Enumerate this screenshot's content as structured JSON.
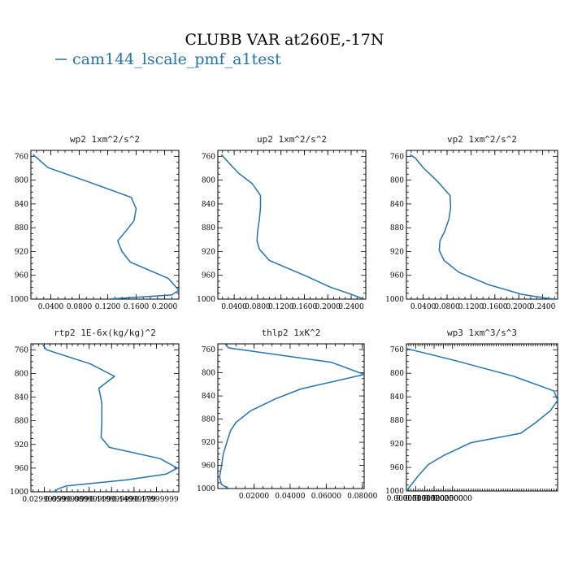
{
  "figure": {
    "title": "CLUBB VAR at260E,-17N",
    "legend": "cam144_lscale_pmf_a1test",
    "line_color": "#2673a8"
  },
  "chart_data": [
    {
      "type": "line",
      "title": "wp2  1xm^2/s^2",
      "ylim": [
        1000,
        750
      ],
      "xlim": [
        0.012,
        0.22
      ],
      "yticks": [
        760,
        800,
        840,
        880,
        920,
        960,
        1000
      ],
      "xticks": [
        0.04,
        0.08,
        0.12,
        0.16,
        0.2
      ],
      "xtick_labels": [
        "0.0400",
        "0.0800",
        "0.1200",
        "0.1600",
        "0.2000"
      ],
      "series": [
        {
          "x": [
            0.015,
            0.036,
            0.098,
            0.153,
            0.16,
            0.157,
            0.146,
            0.134,
            0.14,
            0.152,
            0.205,
            0.22,
            0.21,
            0.12
          ],
          "y": [
            757,
            779,
            805,
            829,
            848,
            868,
            885,
            902,
            920,
            938,
            965,
            985,
            993,
            1000
          ]
        }
      ]
    },
    {
      "type": "line",
      "title": "up2  1xm^2/s^2",
      "ylim": [
        1000,
        750
      ],
      "xlim": [
        0.012,
        0.265
      ],
      "yticks": [
        760,
        800,
        840,
        880,
        920,
        960,
        1000
      ],
      "xticks": [
        0.04,
        0.08,
        0.12,
        0.16,
        0.2,
        0.24
      ],
      "xtick_labels": [
        "0.0400",
        "0.0800",
        "0.1200",
        "0.1600",
        "0.2000",
        "0.2400"
      ],
      "series": [
        {
          "x": [
            0.018,
            0.03,
            0.047,
            0.071,
            0.085,
            0.085,
            0.083,
            0.08,
            0.079,
            0.083,
            0.1,
            0.16,
            0.205,
            0.24,
            0.262
          ],
          "y": [
            757,
            770,
            788,
            806,
            826,
            846,
            866,
            886,
            902,
            916,
            935,
            960,
            980,
            992,
            1000
          ]
        }
      ]
    },
    {
      "type": "line",
      "title": "vp2  1xm^2/s^2",
      "ylim": [
        1000,
        750
      ],
      "xlim": [
        0.012,
        0.265
      ],
      "yticks": [
        760,
        800,
        840,
        880,
        920,
        960,
        1000
      ],
      "xticks": [
        0.04,
        0.08,
        0.12,
        0.16,
        0.2,
        0.24
      ],
      "xtick_labels": [
        "0.0400",
        "0.0800",
        "0.1200",
        "0.1600",
        "0.2000",
        "0.2400"
      ],
      "series": [
        {
          "x": [
            0.018,
            0.027,
            0.041,
            0.064,
            0.085,
            0.086,
            0.083,
            0.076,
            0.068,
            0.067,
            0.075,
            0.1,
            0.15,
            0.205,
            0.25,
            0.263
          ],
          "y": [
            757,
            763,
            780,
            802,
            826,
            846,
            866,
            886,
            902,
            918,
            935,
            955,
            976,
            992,
            999,
            1000
          ]
        }
      ]
    },
    {
      "type": "line",
      "title": "rtp2  1E-6x(kg/kg)^2",
      "ylim": [
        1000,
        750
      ],
      "xlim": [
        0.012,
        0.21
      ],
      "yticks": [
        760,
        800,
        840,
        880,
        920,
        960,
        1000
      ],
      "xticks": [
        0.03,
        0.06,
        0.09,
        0.12,
        0.15,
        0.18
      ],
      "xtick_labels": [
        "0.02999999",
        "0.05999999",
        "0.08999999",
        "0.11999999",
        "0.14999999",
        "0.17999999"
      ],
      "series": [
        {
          "x": [
            0.028,
            0.033,
            0.092,
            0.124,
            0.103,
            0.107,
            0.107,
            0.106,
            0.117,
            0.185,
            0.208,
            0.193,
            0.14,
            0.06,
            0.048,
            0.045,
            0.04
          ],
          "y": [
            752,
            760,
            784,
            805,
            825,
            850,
            880,
            908,
            925,
            944,
            960,
            970,
            980,
            990,
            995,
            999,
            1000
          ]
        }
      ]
    },
    {
      "type": "line",
      "title": "thlp2  1xK^2",
      "ylim": [
        1000,
        750
      ],
      "xlim": [
        0.0,
        0.081
      ],
      "yticks": [
        760,
        800,
        840,
        880,
        920,
        960,
        1000
      ],
      "xticks": [
        0.02,
        0.04,
        0.06,
        0.08
      ],
      "xtick_labels": [
        "0.02000",
        "0.04000",
        "0.06000",
        "0.08000"
      ],
      "series": [
        {
          "x": [
            0.003,
            0.006,
            0.063,
            0.081,
            0.046,
            0.032,
            0.018,
            0.01,
            0.007,
            0.005,
            0.003,
            0.002,
            0.001,
            0.002,
            0.006
          ],
          "y": [
            747,
            757,
            782,
            803,
            828,
            845,
            866,
            886,
            900,
            920,
            940,
            962,
            980,
            993,
            1000
          ]
        }
      ]
    },
    {
      "type": "line",
      "title": "wp3  1xm^3/s^3",
      "ylim": [
        1000,
        750
      ],
      "xlim": [
        0.0,
        0.082
      ],
      "yticks": [
        760,
        800,
        840,
        880,
        920,
        960,
        1000
      ],
      "xticks": [
        0.0,
        0.005,
        0.01,
        0.015,
        0.02,
        0.025
      ],
      "xtick_labels": [
        "0.0000000",
        "0.0050000",
        "0.0100000",
        "0.0150000",
        "0.0200000",
        "0.0250000"
      ],
      "series": [
        {
          "x": [
            0.0,
            0.026,
            0.058,
            0.08,
            0.082,
            0.078,
            0.07,
            0.062,
            0.035,
            0.02,
            0.012,
            0.007,
            0.003,
            0.0
          ],
          "y": [
            758,
            778,
            805,
            830,
            846,
            864,
            884,
            902,
            918,
            940,
            955,
            972,
            988,
            1000
          ]
        }
      ]
    }
  ]
}
